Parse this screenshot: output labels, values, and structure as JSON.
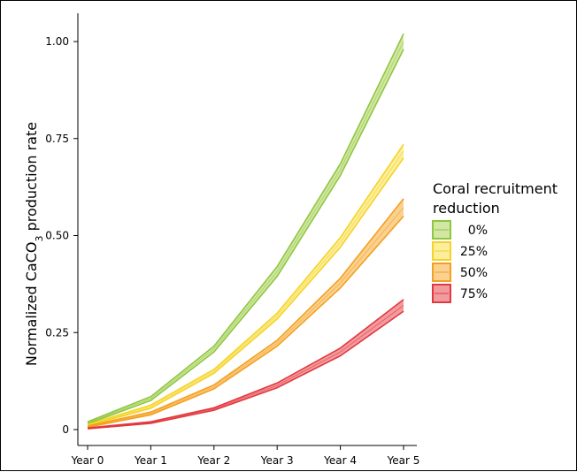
{
  "chart_data": {
    "type": "area",
    "categories": [
      "Year 0",
      "Year 1",
      "Year 2",
      "Year 3",
      "Year 4",
      "Year 5"
    ],
    "ylabel_parts": [
      "Normalized CaCO",
      "3",
      " production rate"
    ],
    "xlabel": "",
    "ylim": [
      0,
      1.0
    ],
    "yticks": [
      0,
      0.25,
      0.5,
      0.75,
      1.0
    ],
    "ytick_labels": [
      "0",
      "0.25",
      "0.50",
      "0.75",
      "1.00"
    ],
    "legend_title_lines": [
      "Coral recruitment",
      "reduction"
    ],
    "legend_placement": "right",
    "grid": false,
    "series": [
      {
        "name": "0%",
        "stroke": "#8ec641",
        "fill": "#d2e7a3",
        "lower": [
          0.015,
          0.075,
          0.2,
          0.395,
          0.655,
          0.98
        ],
        "upper": [
          0.02,
          0.085,
          0.215,
          0.42,
          0.685,
          1.02
        ]
      },
      {
        "name": "25%",
        "stroke": "#f5d326",
        "fill": "#fbee9c",
        "lower": [
          0.01,
          0.055,
          0.145,
          0.285,
          0.47,
          0.7
        ],
        "upper": [
          0.013,
          0.063,
          0.155,
          0.3,
          0.495,
          0.735
        ]
      },
      {
        "name": "50%",
        "stroke": "#f3a020",
        "fill": "#fbd191",
        "lower": [
          0.006,
          0.038,
          0.105,
          0.215,
          0.365,
          0.55
        ],
        "upper": [
          0.009,
          0.045,
          0.115,
          0.23,
          0.39,
          0.595
        ]
      },
      {
        "name": "75%",
        "stroke": "#e2383f",
        "fill": "#f29b9e",
        "lower": [
          0.002,
          0.016,
          0.05,
          0.108,
          0.19,
          0.305
        ],
        "upper": [
          0.004,
          0.02,
          0.056,
          0.12,
          0.21,
          0.335
        ]
      }
    ],
    "legend_box_borders": [
      "#8ec641",
      "#f5d326",
      "#f3a020",
      "#e2383f"
    ]
  }
}
